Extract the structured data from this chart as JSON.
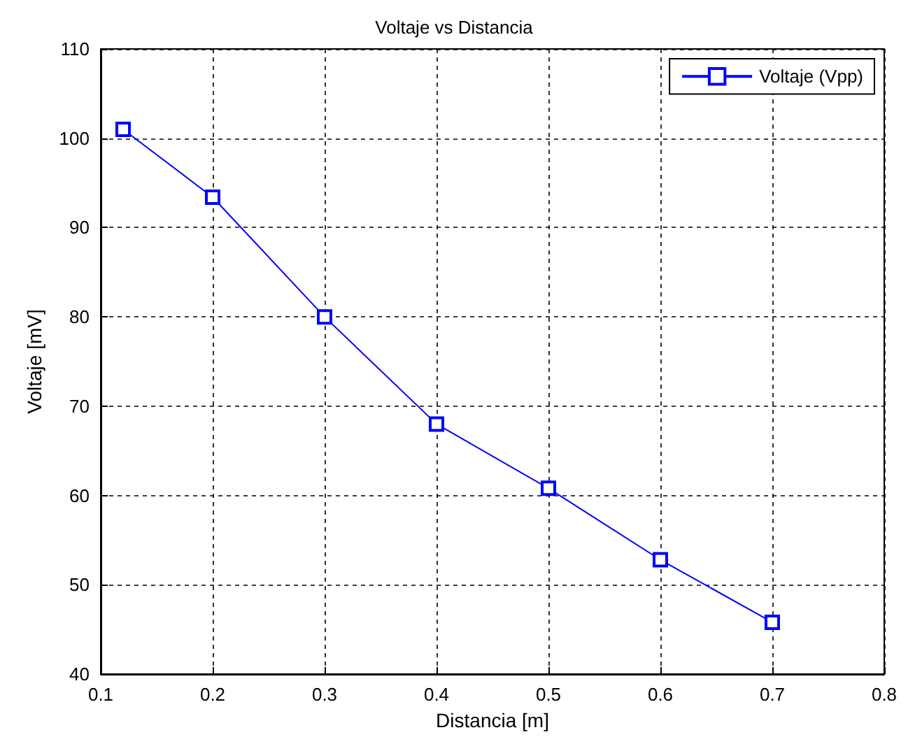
{
  "chart_data": {
    "type": "line",
    "title": "Voltaje vs Distancia",
    "xlabel": "Distancia [m]",
    "ylabel": "Voltaje [mV]",
    "x": [
      0.12,
      0.2,
      0.3,
      0.4,
      0.5,
      0.6,
      0.7
    ],
    "series": [
      {
        "name": "Voltaje (Vpp)",
        "color": "#0000ff",
        "values": [
          101,
          93.4,
          80,
          68,
          60.8,
          52.8,
          45.8
        ]
      }
    ],
    "xlim": [
      0.1,
      0.8
    ],
    "xticks": [
      0.1,
      0.2,
      0.3,
      0.4,
      0.5,
      0.6,
      0.7,
      0.8
    ],
    "ylim": [
      40,
      110
    ],
    "yticks": [
      40,
      50,
      60,
      70,
      80,
      90,
      100,
      110
    ],
    "grid": true,
    "legend": "top right",
    "marker": "square",
    "line_style": "solid"
  }
}
